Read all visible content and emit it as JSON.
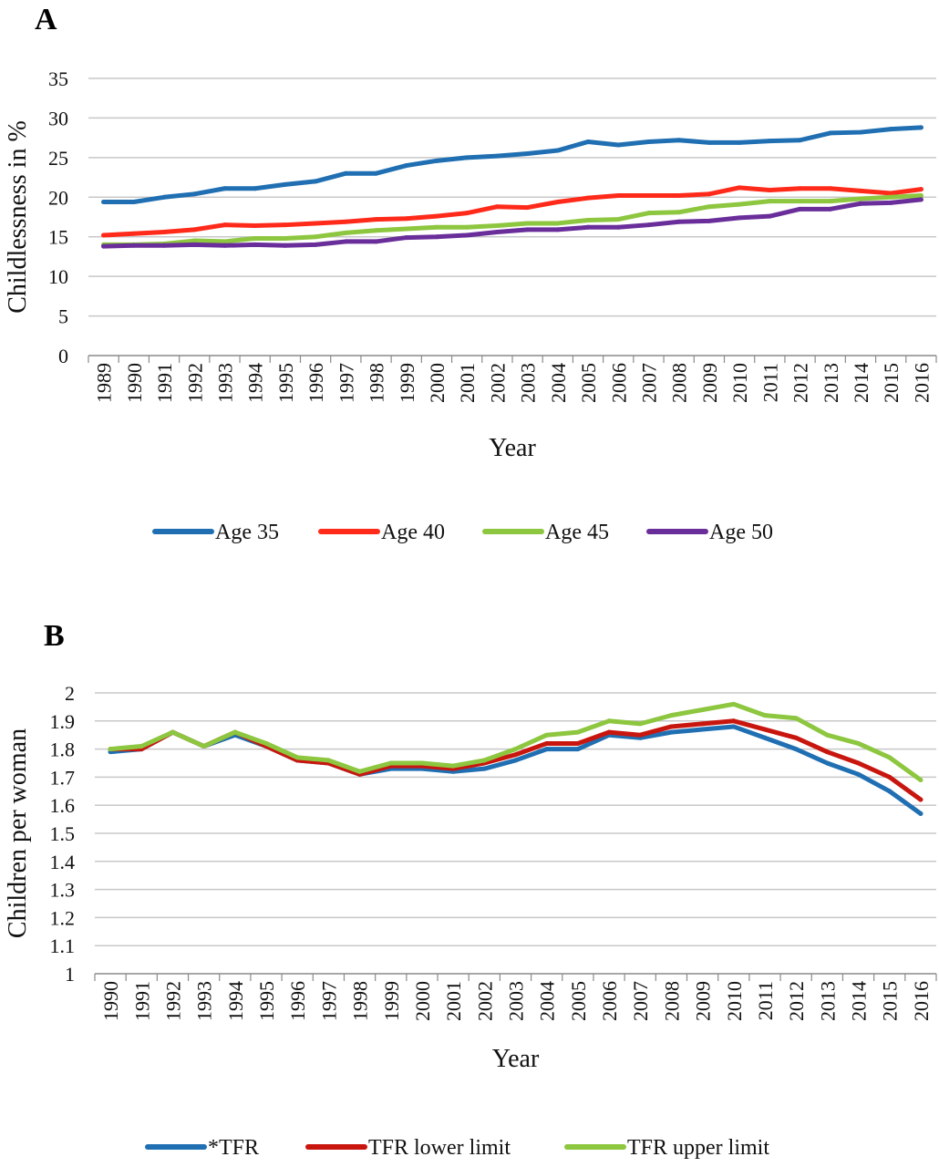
{
  "chart_data": [
    {
      "panel": "A",
      "type": "line",
      "xlabel": "Year",
      "ylabel": "Childlessness in %",
      "ylim": [
        0,
        35
      ],
      "yticks": [
        0,
        5,
        10,
        15,
        20,
        25,
        30,
        35
      ],
      "grid": "horizontal",
      "legend_position": "bottom",
      "categories": [
        "1989",
        "1990",
        "1991",
        "1992",
        "1993",
        "1994",
        "1995",
        "1996",
        "1997",
        "1998",
        "1999",
        "2000",
        "2001",
        "2002",
        "2003",
        "2004",
        "2005",
        "2006",
        "2007",
        "2008",
        "2009",
        "2010",
        "2011",
        "2012",
        "2013",
        "2014",
        "2015",
        "2016"
      ],
      "series": [
        {
          "name": "Age 35",
          "color": "#1f6fb2",
          "values": [
            19.4,
            19.4,
            20.0,
            20.4,
            21.1,
            21.1,
            21.6,
            22.0,
            23.0,
            23.0,
            24.0,
            24.6,
            25.0,
            25.2,
            25.5,
            25.9,
            27.0,
            26.6,
            27.0,
            27.2,
            26.9,
            26.9,
            27.1,
            27.2,
            28.1,
            28.2,
            28.6,
            28.8
          ]
        },
        {
          "name": "Age 40",
          "color": "#ff2a1a",
          "values": [
            15.2,
            15.4,
            15.6,
            15.9,
            16.5,
            16.4,
            16.5,
            16.7,
            16.9,
            17.2,
            17.3,
            17.6,
            18.0,
            18.8,
            18.7,
            19.4,
            19.9,
            20.2,
            20.2,
            20.2,
            20.4,
            21.2,
            20.9,
            21.1,
            21.1,
            20.8,
            20.5,
            21.0
          ]
        },
        {
          "name": "Age 45",
          "color": "#8dc63f",
          "values": [
            14.0,
            14.0,
            14.1,
            14.5,
            14.4,
            14.8,
            14.8,
            15.0,
            15.5,
            15.8,
            16.0,
            16.2,
            16.2,
            16.4,
            16.7,
            16.7,
            17.1,
            17.2,
            18.0,
            18.1,
            18.8,
            19.1,
            19.5,
            19.5,
            19.5,
            19.8,
            20.0,
            20.2
          ]
        },
        {
          "name": "Age 50",
          "color": "#6a2e9a",
          "values": [
            13.8,
            13.9,
            13.9,
            14.0,
            13.9,
            14.0,
            13.9,
            14.0,
            14.4,
            14.4,
            14.9,
            15.0,
            15.2,
            15.6,
            15.9,
            15.9,
            16.2,
            16.2,
            16.5,
            16.9,
            17.0,
            17.4,
            17.6,
            18.5,
            18.5,
            19.2,
            19.3,
            19.7
          ]
        }
      ]
    },
    {
      "panel": "B",
      "type": "line",
      "xlabel": "Year",
      "ylabel": "Children per woman",
      "ylim": [
        1,
        2
      ],
      "yticks": [
        "1",
        "1.1",
        "1.2",
        "1.3",
        "1.4",
        "1.5",
        "1.6",
        "1.7",
        "1.8",
        "1.9",
        "2"
      ],
      "grid": "horizontal",
      "legend_position": "bottom",
      "categories": [
        "1990",
        "1991",
        "1992",
        "1993",
        "1994",
        "1995",
        "1996",
        "1997",
        "1998",
        "1999",
        "2000",
        "2001",
        "2002",
        "2003",
        "2004",
        "2005",
        "2006",
        "2007",
        "2008",
        "2009",
        "2010",
        "2011",
        "2012",
        "2013",
        "2014",
        "2015",
        "2016"
      ],
      "series": [
        {
          "name": "*TFR",
          "color": "#1f6fb2",
          "values": [
            1.79,
            1.8,
            1.86,
            1.81,
            1.85,
            1.81,
            1.76,
            1.75,
            1.71,
            1.73,
            1.73,
            1.72,
            1.73,
            1.76,
            1.8,
            1.8,
            1.85,
            1.84,
            1.86,
            1.87,
            1.88,
            1.84,
            1.8,
            1.75,
            1.71,
            1.65,
            1.57
          ]
        },
        {
          "name": "TFR lower limit",
          "color": "#c8160f",
          "values": [
            1.8,
            1.8,
            1.86,
            1.81,
            1.86,
            1.81,
            1.76,
            1.75,
            1.71,
            1.74,
            1.74,
            1.73,
            1.75,
            1.78,
            1.82,
            1.82,
            1.86,
            1.85,
            1.88,
            1.89,
            1.9,
            1.87,
            1.84,
            1.79,
            1.75,
            1.7,
            1.62
          ]
        },
        {
          "name": "TFR upper limit",
          "color": "#8dc63f",
          "values": [
            1.8,
            1.81,
            1.86,
            1.81,
            1.86,
            1.82,
            1.77,
            1.76,
            1.72,
            1.75,
            1.75,
            1.74,
            1.76,
            1.8,
            1.85,
            1.86,
            1.9,
            1.89,
            1.92,
            1.94,
            1.96,
            1.92,
            1.91,
            1.85,
            1.82,
            1.77,
            1.69
          ]
        }
      ]
    }
  ]
}
